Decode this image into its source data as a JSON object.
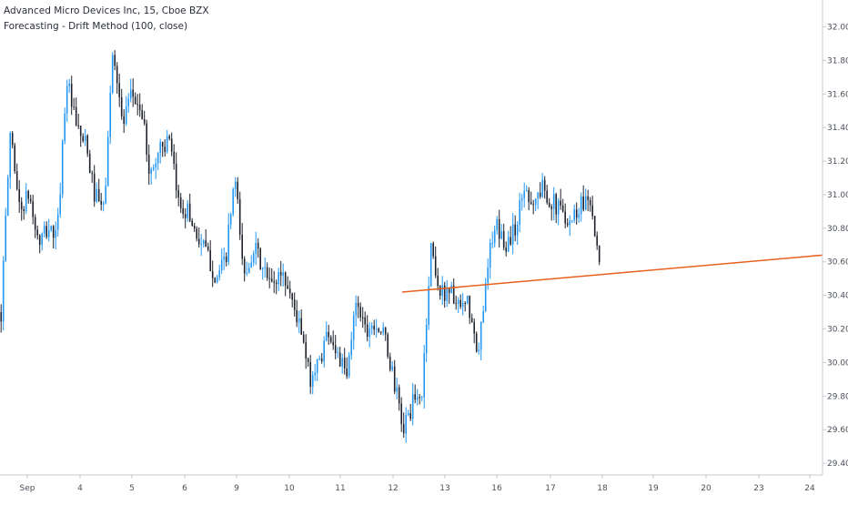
{
  "header": {
    "title": "Advanced Micro Devices Inc, 15, Cboe BZX",
    "indicator": "Forecasting - Drift Method (100, close)"
  },
  "colors": {
    "up_candle": "#2196f3",
    "down_candle": "#1e222d",
    "forecast_line": "#e8601c",
    "axis_line": "#c8cad0"
  },
  "chart_data": {
    "type": "candlestick",
    "title": "",
    "xlabel": "",
    "ylabel": "",
    "ylim": [
      29.33,
      32.16
    ],
    "y_ticks": [
      29.4,
      29.6,
      29.8,
      30.0,
      30.2,
      30.4,
      30.6,
      30.8,
      31.0,
      31.2,
      31.4,
      31.6,
      31.8,
      32.0
    ],
    "x_ticks": [
      "Sep",
      "4",
      "5",
      "6",
      "9",
      "10",
      "11",
      "12",
      "13",
      "16",
      "17",
      "18",
      "19",
      "20",
      "23",
      "24"
    ],
    "series": [
      {
        "kind": "candlestick",
        "ohlc_path": [
          30.3,
          31.4,
          30.9,
          31.0,
          30.7,
          30.8,
          30.75,
          31.7,
          31.4,
          31.3,
          31.0,
          30.9,
          31.9,
          31.4,
          31.6,
          31.5,
          31.1,
          31.3,
          31.3,
          30.95,
          30.9,
          30.75,
          30.65,
          30.5,
          30.6,
          31.1,
          30.5,
          30.7,
          30.55,
          30.45,
          30.55,
          30.4,
          30.2,
          29.9,
          30.0,
          30.2,
          30.05,
          29.9,
          30.4,
          30.2,
          30.25,
          30.15,
          29.9,
          29.6,
          29.75,
          29.8,
          30.7,
          30.4,
          30.45,
          30.3,
          30.35,
          30.0,
          30.6,
          30.8,
          30.7,
          30.8,
          31.05,
          30.95,
          31.05,
          30.95,
          30.9,
          30.85,
          30.95,
          31.0,
          30.55
        ]
      },
      {
        "kind": "line",
        "name": "",
        "x": [
          "12",
          "24"
        ],
        "values": [
          30.42,
          30.64
        ]
      }
    ]
  },
  "footer": {
    "logo": ""
  }
}
